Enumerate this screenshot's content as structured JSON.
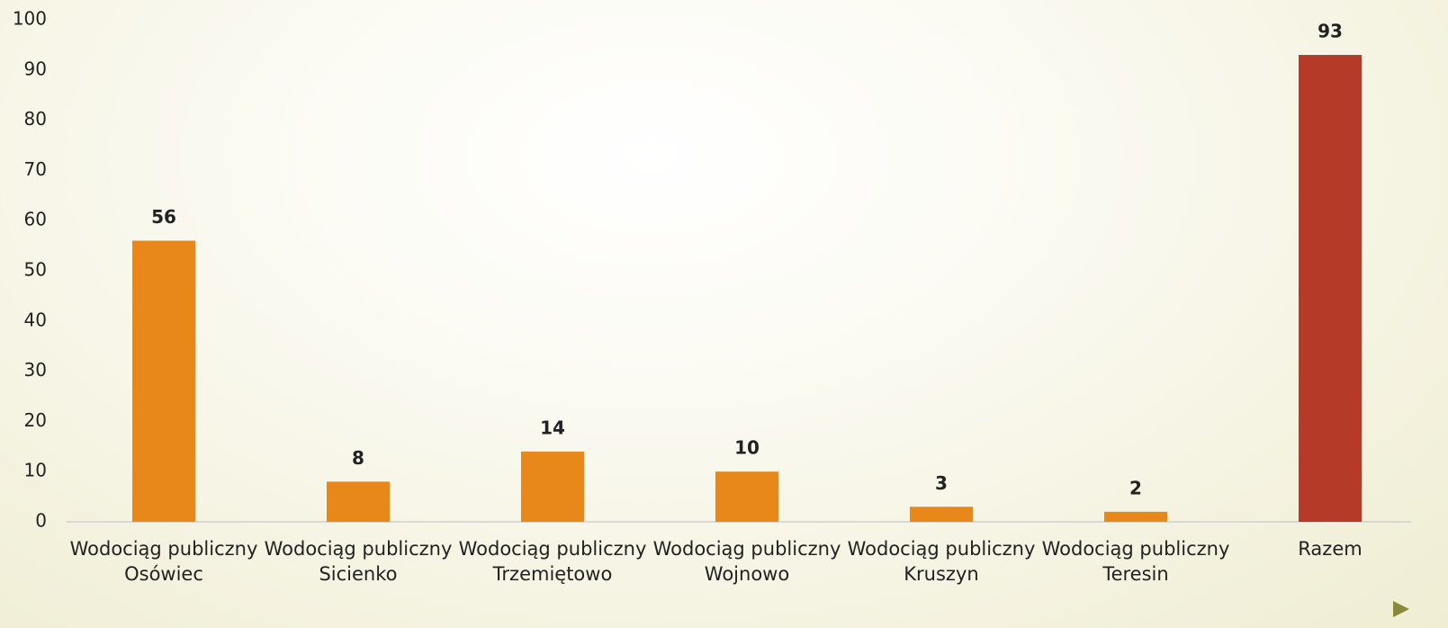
{
  "chart_data": {
    "type": "bar",
    "categories": [
      "Wodociąg publiczny Osówiec",
      "Wodociąg publiczny Sicienko",
      "Wodociąg publiczny Trzemiętowo",
      "Wodociąg publiczny Wojnowo",
      "Wodociąg publiczny Kruszyn",
      "Wodociąg publiczny Teresin",
      "Razem"
    ],
    "values": [
      56,
      8,
      14,
      10,
      3,
      2,
      93
    ],
    "colors": [
      "#e8871a",
      "#e8871a",
      "#e8871a",
      "#e8871a",
      "#e8871a",
      "#e8871a",
      "#b53a28"
    ],
    "ylim": [
      0,
      100
    ],
    "yticks": [
      0,
      10,
      20,
      30,
      40,
      50,
      60,
      70,
      80,
      90,
      100
    ],
    "grid": false
  }
}
